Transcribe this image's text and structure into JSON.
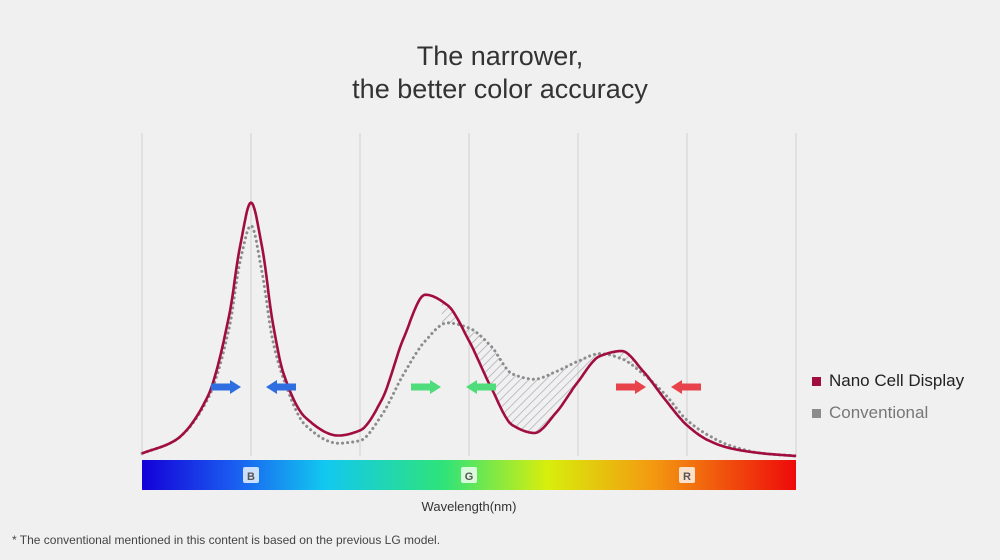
{
  "title": {
    "line1": "The narrower,",
    "line2": "the better color accuracy"
  },
  "legend": [
    {
      "name": "Nano Cell Display",
      "color": "#a10d3e"
    },
    {
      "name": "Conventional",
      "color": "#8c8c8c"
    }
  ],
  "footnote": "* The conventional mentioned in this content is based on the previous LG model.",
  "colors": {
    "nano": "#a10d3e",
    "conventional": "#8c8c8c",
    "blue_arrow": "#2f6ee0",
    "green_arrow": "#4fdc7a",
    "red_arrow": "#e8424a",
    "hatch": "#a8a8b4",
    "grid": "#cfcfcf"
  },
  "chart_data": {
    "type": "line",
    "title": "The narrower, the better color accuracy",
    "xlabel": "Wavelength(nm)",
    "ylabel": "",
    "xlim": [
      0,
      6
    ],
    "ylim": [
      0,
      1
    ],
    "grid": true,
    "legend_position": "right",
    "band_labels": [
      {
        "label": "B",
        "x": 1
      },
      {
        "label": "G",
        "x": 3
      },
      {
        "label": "R",
        "x": 5
      }
    ],
    "series": [
      {
        "name": "Nano Cell Display",
        "style": "solid",
        "x": [
          0,
          0.3,
          0.6,
          0.8,
          0.9,
          1.0,
          1.1,
          1.2,
          1.3,
          1.5,
          1.8,
          2.0,
          2.2,
          2.4,
          2.6,
          2.8,
          3.0,
          3.2,
          3.4,
          3.6,
          3.8,
          4.0,
          4.2,
          4.4,
          4.6,
          4.8,
          5.0,
          5.2,
          5.4,
          5.7,
          6.0
        ],
        "values": [
          0.01,
          0.06,
          0.23,
          0.55,
          0.82,
          0.99,
          0.82,
          0.52,
          0.32,
          0.15,
          0.08,
          0.1,
          0.22,
          0.46,
          0.63,
          0.59,
          0.45,
          0.27,
          0.12,
          0.09,
          0.17,
          0.29,
          0.39,
          0.41,
          0.33,
          0.22,
          0.12,
          0.06,
          0.03,
          0.01,
          0.0
        ]
      },
      {
        "name": "Conventional",
        "style": "dotted",
        "x": [
          0,
          0.3,
          0.6,
          0.8,
          0.9,
          1.0,
          1.1,
          1.2,
          1.3,
          1.5,
          1.8,
          2.0,
          2.2,
          2.4,
          2.6,
          2.8,
          3.0,
          3.2,
          3.4,
          3.6,
          3.8,
          4.0,
          4.2,
          4.4,
          4.6,
          4.8,
          5.0,
          5.2,
          5.4,
          5.7,
          6.0
        ],
        "values": [
          0.01,
          0.06,
          0.22,
          0.5,
          0.76,
          0.9,
          0.72,
          0.45,
          0.3,
          0.12,
          0.05,
          0.06,
          0.16,
          0.32,
          0.45,
          0.52,
          0.5,
          0.43,
          0.32,
          0.3,
          0.33,
          0.37,
          0.4,
          0.38,
          0.32,
          0.24,
          0.14,
          0.08,
          0.04,
          0.01,
          0.0
        ]
      }
    ]
  }
}
